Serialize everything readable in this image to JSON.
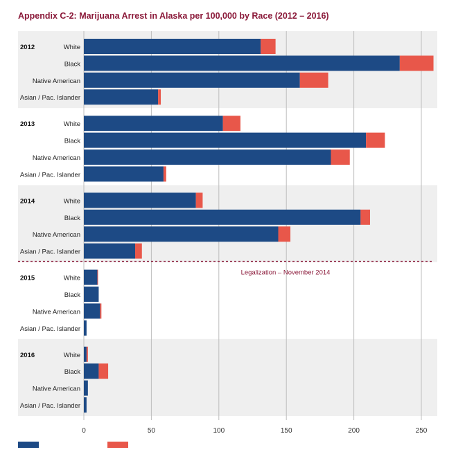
{
  "chart_data": {
    "type": "bar",
    "title": "Appendix C-2: Marijuana Arrest in Alaska per 100,000 by Race (2012 – 2016)",
    "stacked": true,
    "orientation": "horizontal",
    "xlim": [
      0,
      260
    ],
    "xticks": [
      "0",
      "50",
      "100",
      "150",
      "200",
      "250"
    ],
    "grid": true,
    "annotation": "Legalization – November 2014",
    "groups": [
      {
        "year": "2012",
        "rows": [
          {
            "label": "White",
            "possession": 131,
            "other": 11
          },
          {
            "label": "Black",
            "possession": 234,
            "other": 25
          },
          {
            "label": "Native American",
            "possession": 160,
            "other": 21
          },
          {
            "label": "Asian / Pac. Islander",
            "possession": 55,
            "other": 2
          }
        ]
      },
      {
        "year": "2013",
        "rows": [
          {
            "label": "White",
            "possession": 103,
            "other": 13
          },
          {
            "label": "Black",
            "possession": 209,
            "other": 14
          },
          {
            "label": "Native American",
            "possession": 183,
            "other": 14
          },
          {
            "label": "Asian / Pac. Islander",
            "possession": 59,
            "other": 2
          }
        ]
      },
      {
        "year": "2014",
        "rows": [
          {
            "label": "White",
            "possession": 83,
            "other": 5
          },
          {
            "label": "Black",
            "possession": 205,
            "other": 7
          },
          {
            "label": "Native American",
            "possession": 144,
            "other": 9
          },
          {
            "label": "Asian / Pac. Islander",
            "possession": 38,
            "other": 5
          }
        ]
      },
      {
        "year": "2015",
        "rows": [
          {
            "label": "White",
            "possession": 10,
            "other": 0.5
          },
          {
            "label": "Black",
            "possession": 11,
            "other": 0
          },
          {
            "label": "Native American",
            "possession": 12,
            "other": 1
          },
          {
            "label": "Asian / Pac. Islander",
            "possession": 2,
            "other": 0
          }
        ]
      },
      {
        "year": "2016",
        "rows": [
          {
            "label": "White",
            "possession": 2,
            "other": 1
          },
          {
            "label": "Black",
            "possession": 11,
            "other": 7
          },
          {
            "label": "Native American",
            "possession": 3,
            "other": 0
          },
          {
            "label": "Asian / Pac. Islander",
            "possession": 2,
            "other": 0
          }
        ]
      }
    ],
    "colors": {
      "possession": "#1d4a85",
      "other": "#e8574a",
      "band": "#efefef",
      "annotation": "#8b1a3a",
      "grid": "#bdbdbd"
    }
  }
}
